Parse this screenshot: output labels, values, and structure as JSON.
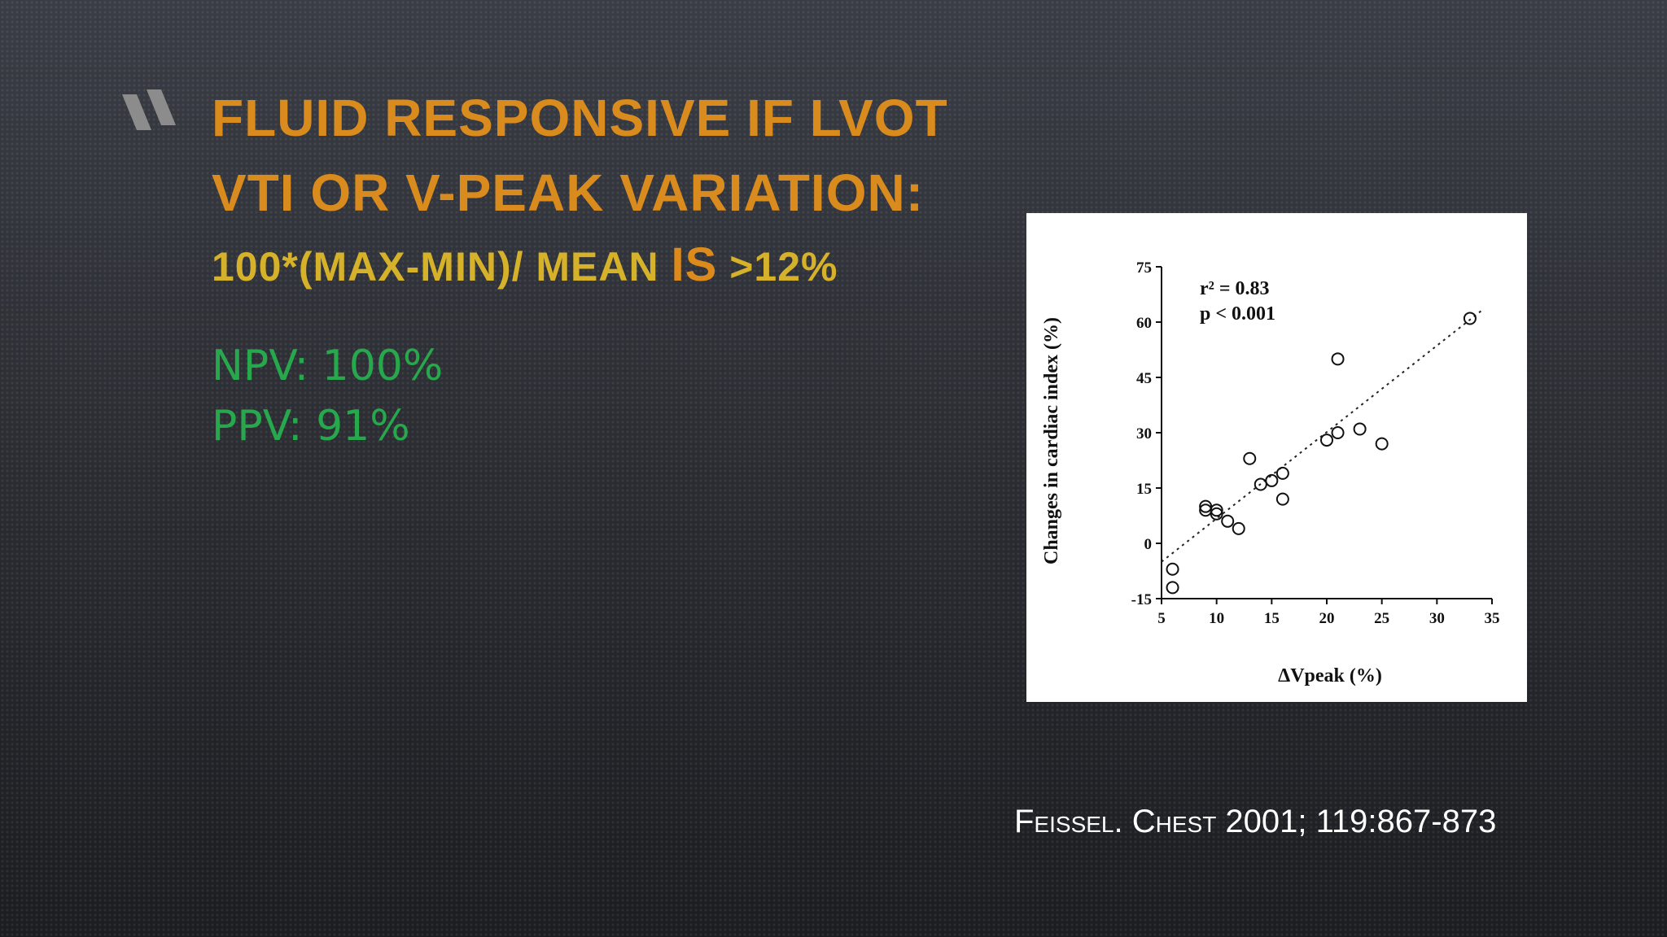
{
  "slide": {
    "title_line1": "Fluid responsive if LVOT",
    "title_line2": "VTI or V-peak variation:",
    "formula": "100*(max-min)/ mean",
    "formula_is": "is",
    "formula_threshold": ">12%",
    "npv": "NPV: 100%",
    "ppv": "PPV: 91%",
    "citation_author": "Feissel.",
    "citation_journal": "Chest",
    "citation_ref": "2001; 119:867-873"
  },
  "colors": {
    "title": "#d98b1e",
    "formula": "#d6b12a",
    "stats": "#27a84c",
    "citation": "#ffffff"
  },
  "chart_data": {
    "type": "scatter",
    "xlabel": "ΔVpeak (%)",
    "ylabel": "Changes in cardiac index (%)",
    "xlim": [
      5,
      35
    ],
    "ylim": [
      -15,
      75
    ],
    "xticks": [
      5,
      10,
      15,
      20,
      25,
      30,
      35
    ],
    "yticks": [
      -15,
      0,
      15,
      30,
      45,
      60,
      75
    ],
    "annotation_r2": "r² = 0.83",
    "annotation_p": "p < 0.001",
    "points": [
      {
        "x": 6,
        "y": -7
      },
      {
        "x": 6,
        "y": -12
      },
      {
        "x": 9,
        "y": 10
      },
      {
        "x": 9,
        "y": 9
      },
      {
        "x": 10,
        "y": 9
      },
      {
        "x": 10,
        "y": 8
      },
      {
        "x": 11,
        "y": 6
      },
      {
        "x": 12,
        "y": 4
      },
      {
        "x": 13,
        "y": 23
      },
      {
        "x": 14,
        "y": 16
      },
      {
        "x": 15,
        "y": 17
      },
      {
        "x": 16,
        "y": 19
      },
      {
        "x": 16,
        "y": 12
      },
      {
        "x": 20,
        "y": 28
      },
      {
        "x": 21,
        "y": 30
      },
      {
        "x": 21,
        "y": 50
      },
      {
        "x": 23,
        "y": 31
      },
      {
        "x": 25,
        "y": 27
      },
      {
        "x": 33,
        "y": 61
      }
    ],
    "trendline": {
      "x": [
        5,
        34
      ],
      "y": [
        -5,
        63
      ]
    },
    "grid": false,
    "legend": "none"
  }
}
